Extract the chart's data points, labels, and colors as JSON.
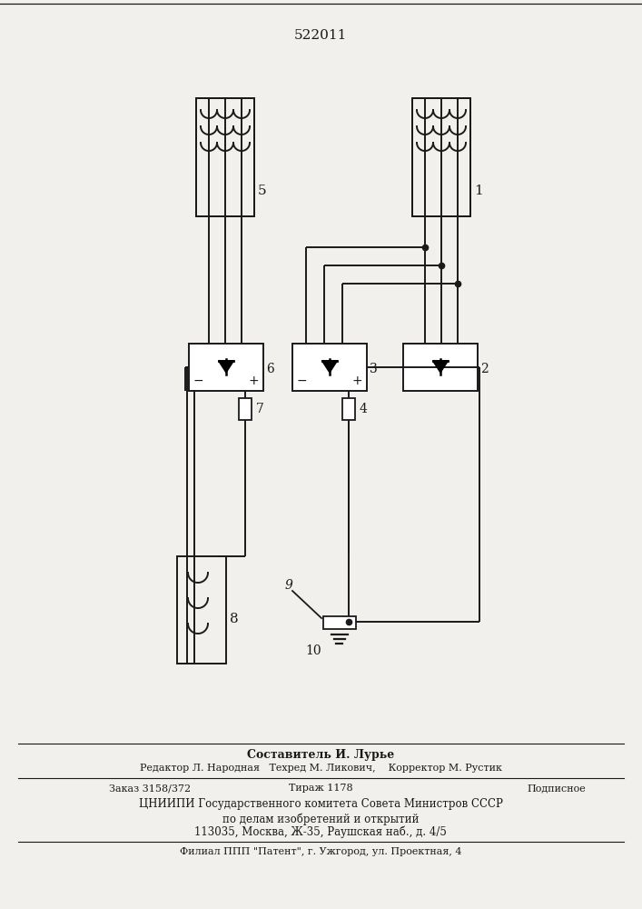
{
  "title": "522011",
  "background_color": "#f2f0ed",
  "line_color": "#1a1a1a",
  "footer_lines": [
    "Составитель И. Лурье",
    "Редактор Л. Народная   Техред М. Ликович,    Корректор М. Рустик",
    "Заказ 3158/372        Тираж 1178        Подписное",
    "ЦНИИПИ Государственного комитета Совета Министров СССР",
    "по делам изобретений и открытий",
    "113035, Москва, Ж-35, Раушская наб., д. 4/5",
    "Филиал ППП \"Патент\", г. Ужгород, ул. Проектная, 4"
  ]
}
